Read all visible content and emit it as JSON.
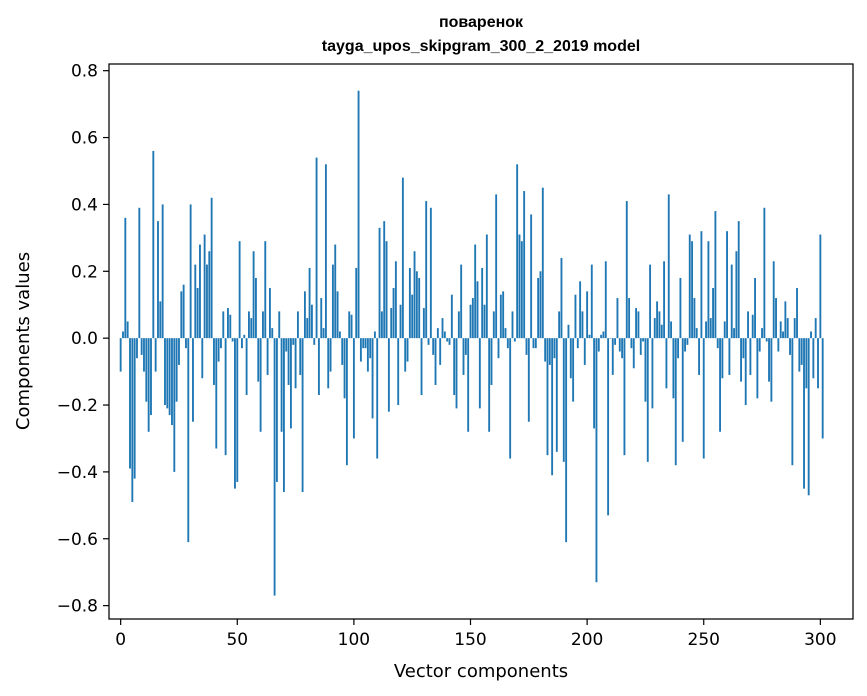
{
  "chart_data": {
    "type": "bar",
    "title": "поваренок",
    "subtitle": "tayga_upos_skipgram_300_2_2019 model",
    "xlabel": "Vector components",
    "ylabel": "Components values",
    "xlim": [
      -5,
      314
    ],
    "ylim": [
      -0.84,
      0.82
    ],
    "grid": false,
    "bar_color": "#1f77b4",
    "x_ticks": [
      {
        "value": 0,
        "label": "0"
      },
      {
        "value": 50,
        "label": "50"
      },
      {
        "value": 100,
        "label": "100"
      },
      {
        "value": 150,
        "label": "150"
      },
      {
        "value": 200,
        "label": "200"
      },
      {
        "value": 250,
        "label": "250"
      },
      {
        "value": 300,
        "label": "300"
      }
    ],
    "y_ticks": [
      {
        "value": 0.8,
        "label": "0.8"
      },
      {
        "value": 0.6,
        "label": "0.6"
      },
      {
        "value": 0.4,
        "label": "0.4"
      },
      {
        "value": 0.2,
        "label": "0.2"
      },
      {
        "value": 0.0,
        "label": "0.0"
      },
      {
        "value": -0.2,
        "label": "−0.2"
      },
      {
        "value": -0.4,
        "label": "−0.4"
      },
      {
        "value": -0.6,
        "label": "−0.6"
      },
      {
        "value": -0.8,
        "label": "−0.8"
      }
    ],
    "values": [
      -0.1,
      0.02,
      0.36,
      0.05,
      -0.39,
      -0.49,
      -0.42,
      -0.06,
      0.39,
      -0.05,
      -0.1,
      -0.19,
      -0.28,
      -0.23,
      0.56,
      -0.1,
      0.35,
      0.11,
      0.4,
      -0.2,
      -0.21,
      -0.23,
      -0.26,
      -0.4,
      -0.19,
      -0.08,
      0.14,
      0.16,
      -0.03,
      -0.61,
      0.4,
      -0.25,
      0.22,
      0.15,
      0.28,
      -0.12,
      0.31,
      0.22,
      0.26,
      0.42,
      -0.14,
      -0.33,
      -0.07,
      -0.03,
      0.08,
      -0.35,
      0.09,
      0.07,
      -0.01,
      -0.45,
      -0.43,
      0.29,
      -0.03,
      0.01,
      -0.17,
      0.08,
      0.06,
      0.26,
      0.18,
      -0.13,
      -0.28,
      0.08,
      0.29,
      -0.11,
      0.15,
      0.03,
      -0.77,
      -0.43,
      0.08,
      -0.28,
      -0.46,
      -0.04,
      -0.14,
      -0.27,
      -0.02,
      -0.15,
      0.08,
      -0.11,
      -0.46,
      0.14,
      0.06,
      0.21,
      0.1,
      -0.02,
      0.54,
      -0.17,
      0.12,
      0.03,
      0.52,
      -0.15,
      -0.1,
      0.22,
      0.28,
      0.14,
      0.02,
      -0.08,
      -0.18,
      -0.38,
      0.08,
      0.07,
      -0.3,
      0.21,
      0.74,
      -0.07,
      -0.03,
      -0.03,
      -0.1,
      -0.06,
      -0.24,
      0.02,
      -0.36,
      0.33,
      0.08,
      0.35,
      0.29,
      -0.22,
      0.09,
      0.15,
      0.23,
      -0.2,
      0.1,
      0.48,
      -0.1,
      -0.07,
      0.21,
      0.13,
      0.26,
      0.2,
      0.18,
      -0.17,
      0.09,
      0.41,
      -0.02,
      0.39,
      -0.05,
      -0.14,
      0.03,
      -0.08,
      0.06,
      0.02,
      -0.01,
      -0.02,
      0.13,
      -0.17,
      -0.21,
      0.08,
      0.22,
      -0.11,
      -0.05,
      -0.28,
      0.1,
      0.12,
      0.28,
      0.17,
      -0.21,
      0.21,
      0.1,
      0.31,
      -0.28,
      -0.14,
      0.08,
      0.43,
      -0.06,
      0.13,
      0.14,
      0.03,
      -0.03,
      -0.36,
      0.08,
      -0.01,
      0.52,
      0.31,
      0.29,
      0.44,
      -0.05,
      -0.25,
      0.37,
      -0.03,
      -0.03,
      0.18,
      0.2,
      0.45,
      -0.07,
      -0.35,
      -0.08,
      -0.41,
      -0.06,
      -0.34,
      0.08,
      0.24,
      -0.37,
      -0.61,
      0.04,
      -0.12,
      -0.19,
      0.13,
      -0.03,
      0.17,
      0.08,
      -0.08,
      0.14,
      0.01,
      0.22,
      -0.27,
      -0.73,
      -0.04,
      0.01,
      0.02,
      0.23,
      -0.53,
      0.0,
      -0.11,
      -0.02,
      0.12,
      -0.04,
      -0.06,
      -0.35,
      0.41,
      0.12,
      -0.03,
      -0.09,
      0.09,
      0.08,
      -0.05,
      -0.01,
      -0.19,
      -0.37,
      0.22,
      -0.21,
      0.06,
      0.11,
      0.08,
      0.04,
      0.23,
      -0.15,
      0.43,
      0.05,
      -0.18,
      -0.38,
      -0.06,
      0.18,
      -0.31,
      -0.04,
      -0.02,
      0.31,
      0.29,
      0.12,
      0.03,
      -0.11,
      0.32,
      -0.36,
      0.05,
      0.29,
      0.06,
      0.15,
      0.38,
      -0.03,
      -0.28,
      -0.12,
      0.05,
      0.32,
      -0.11,
      0.22,
      0.03,
      0.26,
      0.35,
      -0.13,
      -0.06,
      -0.2,
      0.08,
      -0.11,
      0.07,
      0.18,
      -0.18,
      -0.04,
      0.03,
      0.39,
      -0.01,
      -0.13,
      -0.19,
      0.23,
      0.12,
      -0.04,
      0.05,
      0.02,
      0.11,
      0.06,
      -0.05,
      -0.38,
      0.06,
      0.15,
      -0.1,
      -0.08,
      -0.45,
      -0.15,
      -0.47,
      0.02,
      -0.12,
      0.06,
      -0.15,
      0.31,
      -0.3
    ]
  }
}
